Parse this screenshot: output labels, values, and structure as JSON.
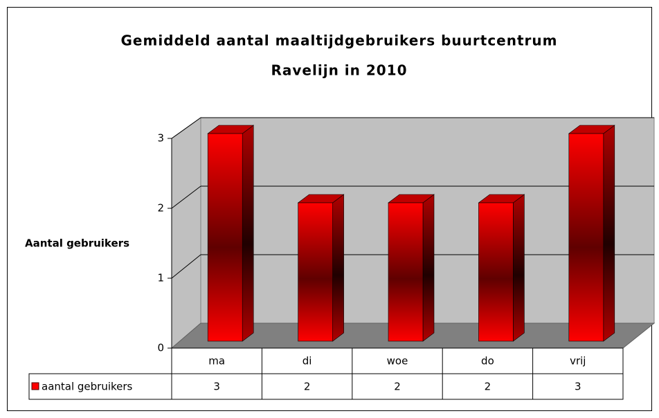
{
  "chart_data": {
    "type": "bar3d",
    "title": [
      "Gemiddeld aantal maaltijdgebruikers buurtcentrum",
      "Ravelijn in 2010"
    ],
    "y_label": "Aantal gebruikers",
    "categories": [
      "ma",
      "di",
      "woe",
      "do",
      "vrij"
    ],
    "series": [
      {
        "name": "aantal gebruikers",
        "color": "#ff0000",
        "values": [
          3,
          2,
          2,
          2,
          3
        ]
      }
    ],
    "ylim": [
      0,
      3
    ],
    "yticks": [
      0,
      1,
      2,
      3
    ],
    "grid": true,
    "data_table": true
  }
}
